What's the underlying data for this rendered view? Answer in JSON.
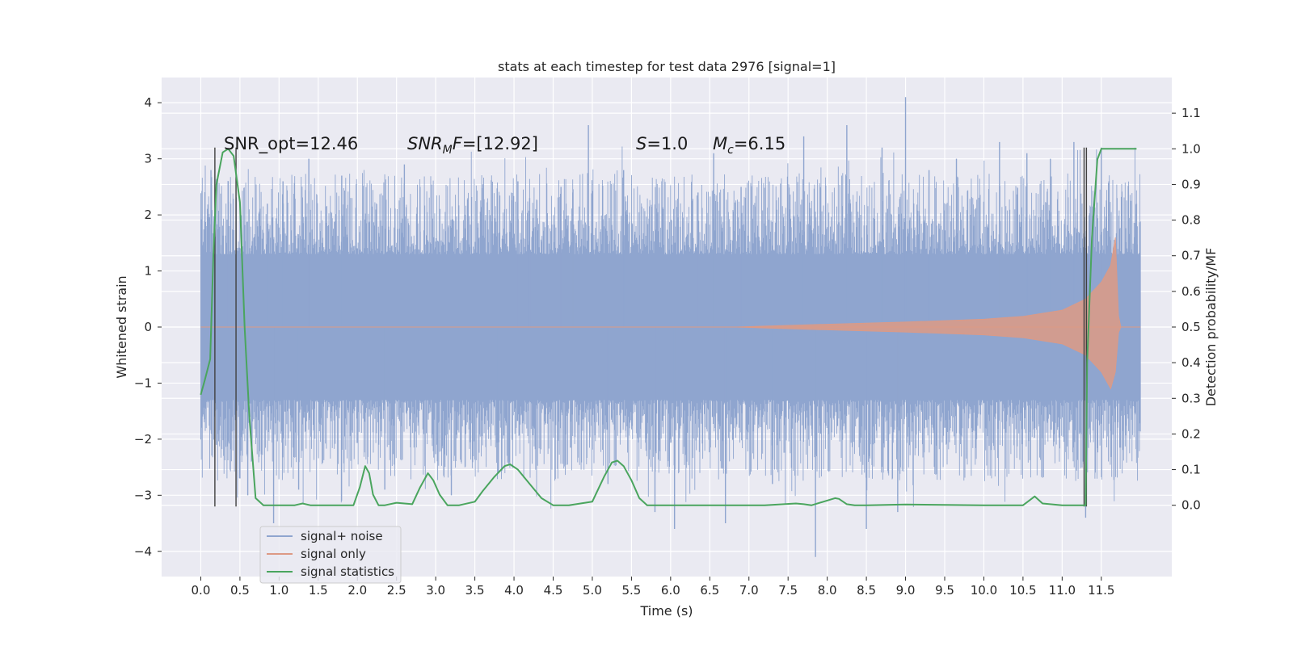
{
  "chart_data": {
    "type": "line",
    "title": "stats at each timestep for test data 2976 [signal=1]",
    "xlabel": "Time (s)",
    "ylabel": "Whitened strain",
    "ylabel_right": "Detection probability/MF",
    "xlim": [
      -0.5,
      12.4
    ],
    "ylim": [
      -4.45,
      4.45
    ],
    "ylim_right": [
      -0.2,
      1.2
    ],
    "x_ticks": [
      0.0,
      0.5,
      1.0,
      1.5,
      2.0,
      2.5,
      3.0,
      3.5,
      4.0,
      4.5,
      5.0,
      5.5,
      6.0,
      6.5,
      7.0,
      7.5,
      8.0,
      8.5,
      9.0,
      9.5,
      10.0,
      10.5,
      11.0,
      11.5
    ],
    "x_tick_labels": [
      "0.0",
      "0.5",
      "1.0",
      "1.5",
      "2.0",
      "2.5",
      "3.0",
      "3.5",
      "4.0",
      "4.5",
      "5.0",
      "5.5",
      "6.0",
      "6.5",
      "7.0",
      "7.5",
      "8.0",
      "8.5",
      "9.0",
      "9.5",
      "10.0",
      "10.5",
      "11.0",
      "11.5"
    ],
    "y_ticks": [
      -4,
      -3,
      -2,
      -1,
      0,
      1,
      2,
      3,
      4
    ],
    "y_tick_labels": [
      "−4",
      "−3",
      "−2",
      "−1",
      "0",
      "1",
      "2",
      "3",
      "4"
    ],
    "y_right_ticks": [
      0.0,
      0.1,
      0.2,
      0.3,
      0.4,
      0.5,
      0.6,
      0.7,
      0.8,
      0.9,
      1.0,
      1.1
    ],
    "y_right_tick_labels": [
      "0.0",
      "0.1",
      "0.2",
      "0.3",
      "0.4",
      "0.5",
      "0.6",
      "0.7",
      "0.8",
      "0.9",
      "1.0",
      "1.1"
    ],
    "grid": true,
    "legend_position": "lower-left",
    "annotations": {
      "snr_opt": "SNR_opt=12.46",
      "snr_mf_prefix": "SNR",
      "snr_mf_sub": "M",
      "snr_mf_suffix": "F=[12.92]",
      "s_prefix": "S",
      "s_suffix": "=1.0",
      "mc_prefix": "M",
      "mc_sub": "c",
      "mc_suffix": "=6.15"
    },
    "series": [
      {
        "name": "signal+ noise",
        "color": "#8fa5cf",
        "x_range": [
          0.0,
          12.0
        ],
        "typical_range": [
          -1.3,
          1.3
        ],
        "spike_points": [
          [
            0.05,
            1.9
          ],
          [
            0.13,
            2.8
          ],
          [
            0.2,
            -2.1
          ],
          [
            0.35,
            2.6
          ],
          [
            0.5,
            -2.7
          ],
          [
            0.6,
            -3.0
          ],
          [
            0.85,
            2.2
          ],
          [
            0.93,
            -3.5
          ],
          [
            1.05,
            2.6
          ],
          [
            1.38,
            3.0
          ],
          [
            1.25,
            -2.9
          ],
          [
            1.8,
            2.7
          ],
          [
            2.35,
            -2.9
          ],
          [
            2.6,
            2.9
          ],
          [
            2.8,
            2.5
          ],
          [
            3.2,
            -3.0
          ],
          [
            3.8,
            -2.6
          ],
          [
            4.05,
            2.6
          ],
          [
            4.2,
            2.3
          ],
          [
            4.6,
            2.5
          ],
          [
            4.75,
            2.4
          ],
          [
            4.95,
            3.6
          ],
          [
            5.2,
            -2.8
          ],
          [
            5.4,
            2.8
          ],
          [
            5.8,
            -3.3
          ],
          [
            6.05,
            -3.6
          ],
          [
            6.35,
            2.4
          ],
          [
            6.55,
            3.1
          ],
          [
            6.7,
            -3.5
          ],
          [
            6.9,
            2.5
          ],
          [
            7.3,
            -2.8
          ],
          [
            7.7,
            3.4
          ],
          [
            7.85,
            -4.1
          ],
          [
            8.25,
            3.6
          ],
          [
            8.5,
            -3.6
          ],
          [
            8.7,
            3.2
          ],
          [
            8.9,
            -3.3
          ],
          [
            9.0,
            4.1
          ],
          [
            9.3,
            2.8
          ],
          [
            9.65,
            3.0
          ],
          [
            10.2,
            3.3
          ],
          [
            10.55,
            3.1
          ],
          [
            10.85,
            3.0
          ],
          [
            11.15,
            3.3
          ],
          [
            11.3,
            -3.4
          ],
          [
            11.5,
            3.2
          ],
          [
            11.7,
            2.3
          ],
          [
            11.95,
            2.2
          ]
        ]
      },
      {
        "name": "signal only",
        "color": "#dd9a85",
        "x_range": [
          6.8,
          11.75
        ],
        "envelope": [
          [
            6.8,
            0.0
          ],
          [
            8.0,
            0.05
          ],
          [
            9.0,
            0.09
          ],
          [
            10.0,
            0.14
          ],
          [
            10.5,
            0.19
          ],
          [
            11.0,
            0.3
          ],
          [
            11.3,
            0.5
          ],
          [
            11.5,
            0.8
          ],
          [
            11.62,
            1.1
          ],
          [
            11.68,
            1.6
          ],
          [
            11.72,
            0.2
          ],
          [
            11.75,
            0.0
          ]
        ]
      },
      {
        "name": "signal statistics",
        "color": "#4aa55e",
        "axis": "right",
        "x": [
          0.0,
          0.05,
          0.12,
          0.16,
          0.2,
          0.28,
          0.35,
          0.42,
          0.5,
          0.56,
          0.62,
          0.7,
          0.8,
          1.0,
          1.2,
          1.3,
          1.4,
          1.6,
          1.8,
          1.95,
          2.03,
          2.1,
          2.15,
          2.2,
          2.27,
          2.35,
          2.5,
          2.6,
          2.7,
          2.8,
          2.9,
          2.97,
          3.05,
          3.15,
          3.3,
          3.5,
          3.6,
          3.75,
          3.88,
          3.95,
          4.05,
          4.2,
          4.35,
          4.5,
          4.7,
          5.0,
          5.15,
          5.25,
          5.32,
          5.4,
          5.5,
          5.6,
          5.7,
          5.9,
          6.5,
          7.2,
          7.6,
          7.7,
          7.8,
          8.1,
          8.15,
          8.25,
          8.35,
          8.5,
          9.0,
          9.5,
          10.0,
          10.3,
          10.5,
          10.65,
          10.75,
          11.0,
          11.25,
          11.3,
          11.32,
          11.38,
          11.45,
          11.5,
          11.6,
          11.8,
          11.95
        ],
        "y": [
          0.31,
          0.35,
          0.41,
          0.7,
          0.9,
          0.99,
          1.0,
          0.98,
          0.85,
          0.5,
          0.25,
          0.02,
          0.0,
          0.0,
          0.0,
          0.005,
          0.0,
          0.0,
          0.0,
          0.0,
          0.05,
          0.11,
          0.09,
          0.03,
          0.0,
          0.0,
          0.007,
          0.005,
          0.003,
          0.05,
          0.09,
          0.07,
          0.03,
          0.0,
          0.0,
          0.01,
          0.04,
          0.08,
          0.11,
          0.115,
          0.1,
          0.06,
          0.02,
          0.0,
          0.0,
          0.01,
          0.08,
          0.12,
          0.125,
          0.11,
          0.07,
          0.02,
          0.0,
          0.0,
          0.0,
          0.0,
          0.005,
          0.003,
          0.0,
          0.02,
          0.018,
          0.003,
          0.0,
          0.0,
          0.002,
          0.001,
          0.0,
          0.0,
          0.0,
          0.025,
          0.005,
          0.0,
          0.0,
          0.0,
          0.4,
          0.75,
          0.97,
          1.0,
          1.0,
          1.0,
          1.0
        ]
      }
    ],
    "vertical_markers": {
      "color": "#404040",
      "x": [
        0.18,
        0.45,
        11.28,
        11.31
      ],
      "y_range": [
        -3.2,
        3.2
      ]
    }
  }
}
